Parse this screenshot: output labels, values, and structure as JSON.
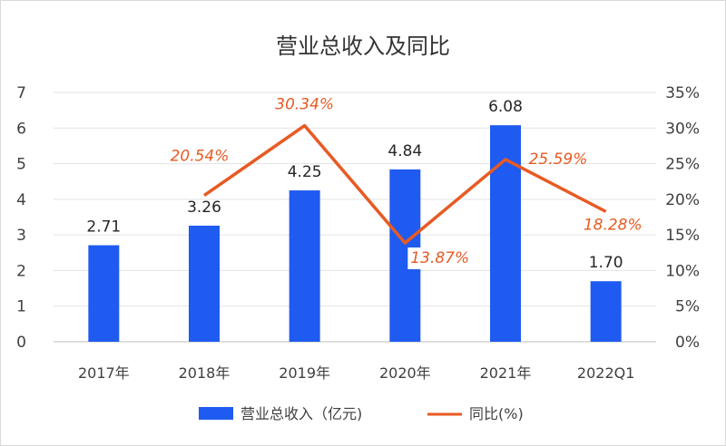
{
  "chart_data": {
    "type": "bar",
    "title": "营业总收入及同比",
    "categories": [
      "2017年",
      "2018年",
      "2019年",
      "2020年",
      "2021年",
      "2022Q1"
    ],
    "series": [
      {
        "name": "营业总收入（亿元)",
        "type": "bar",
        "axis": "left",
        "values": [
          2.71,
          3.26,
          4.25,
          4.84,
          6.08,
          1.7
        ],
        "labels": [
          "2.71",
          "3.26",
          "4.25",
          "4.84",
          "6.08",
          "1.70"
        ],
        "color": "#1f5bf0"
      },
      {
        "name": "同比(%)",
        "type": "line",
        "axis": "right",
        "x": [
          "2018年",
          "2019年",
          "2020年",
          "2021年",
          "2022Q1"
        ],
        "values": [
          20.54,
          30.34,
          13.87,
          25.59,
          18.28
        ],
        "labels": [
          "20.54%",
          "30.34%",
          "13.87%",
          "25.59%",
          "18.28%"
        ],
        "color": "#e85a23"
      }
    ],
    "y_left": {
      "lim": [
        0,
        7
      ],
      "ticks": [
        "0",
        "1",
        "2",
        "3",
        "4",
        "5",
        "6",
        "7"
      ]
    },
    "y_right": {
      "lim": [
        0,
        35
      ],
      "ticks": [
        "0%",
        "5%",
        "10%",
        "15%",
        "20%",
        "25%",
        "30%",
        "35%"
      ]
    },
    "grid": true,
    "legend": "bottom"
  }
}
